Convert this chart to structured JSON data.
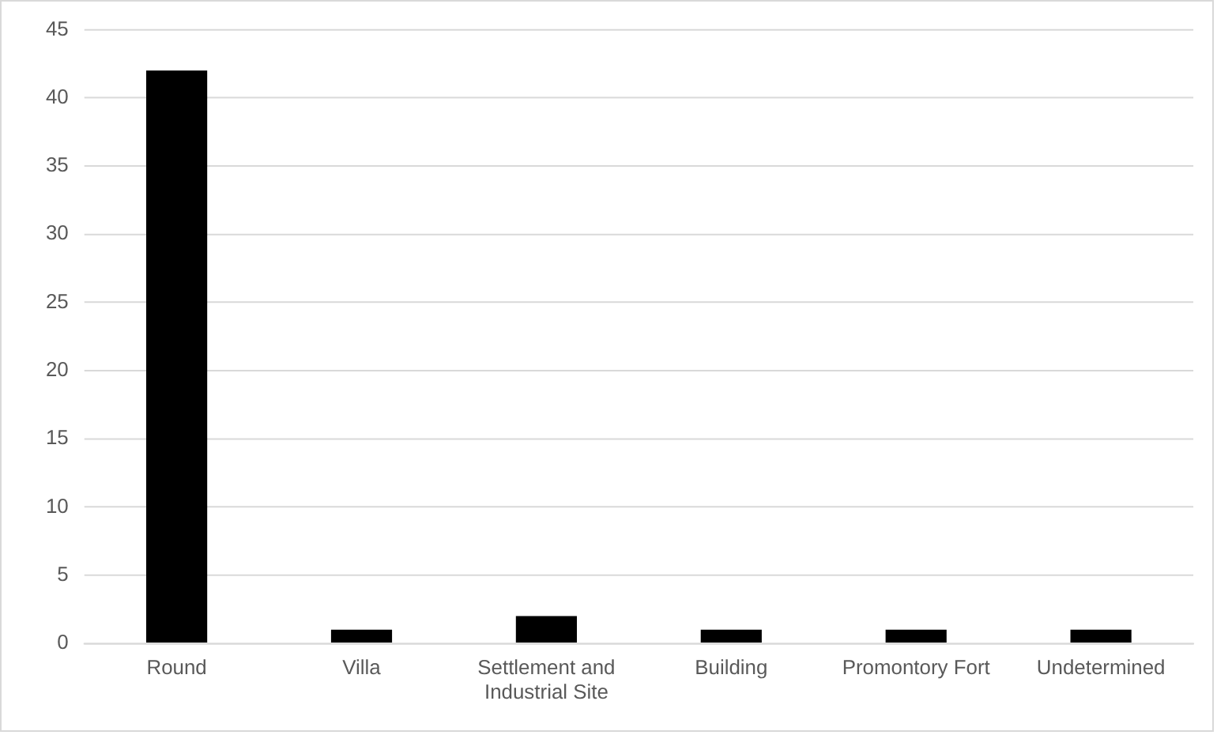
{
  "chart_data": {
    "type": "bar",
    "categories": [
      "Round",
      "Villa",
      "Settlement and Industrial Site",
      "Building",
      "Promontory Fort",
      "Undetermined"
    ],
    "values": [
      42,
      1,
      2,
      1,
      1,
      1
    ],
    "color": "#000000",
    "ylim": [
      0,
      45
    ],
    "yticks": [
      0,
      5,
      10,
      15,
      20,
      25,
      30,
      35,
      40,
      45
    ],
    "grid": "y"
  }
}
